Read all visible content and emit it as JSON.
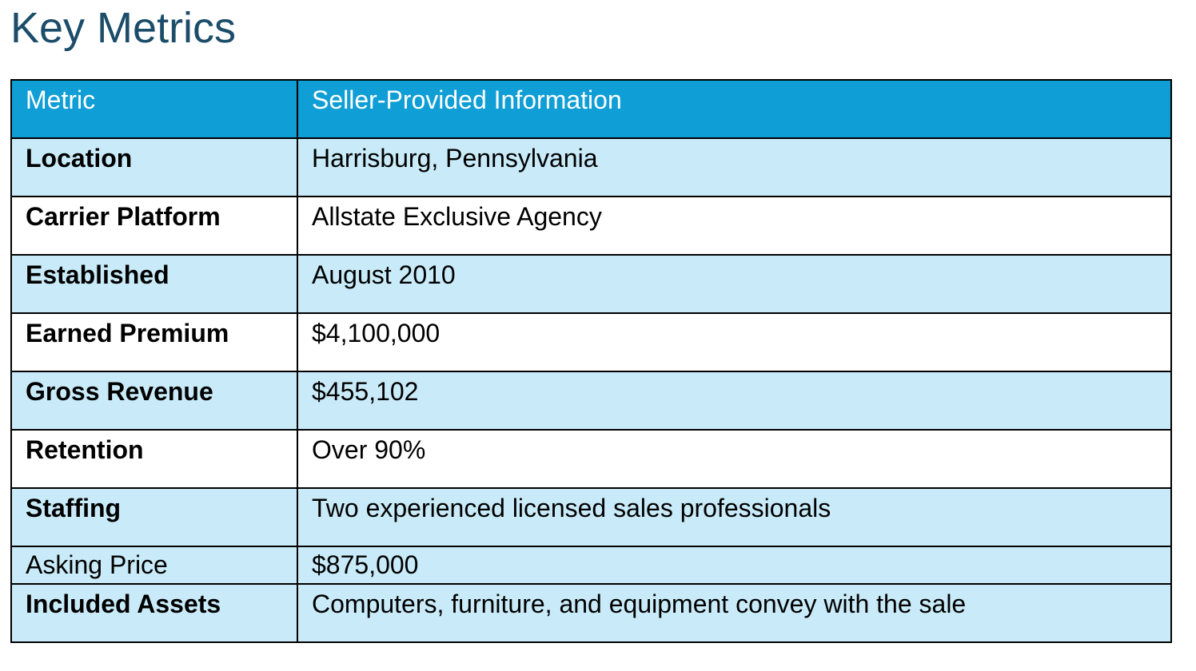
{
  "header": {
    "title": "Key Metrics"
  },
  "table": {
    "columns": [
      "Metric",
      "Seller-Provided Information"
    ],
    "rows": [
      [
        "Location",
        "Harrisburg, Pennsylvania"
      ],
      [
        "Carrier Platform",
        "Allstate Exclusive Agency"
      ],
      [
        "Established",
        "August 2010"
      ],
      [
        "Earned Premium",
        "$4,100,000"
      ],
      [
        "Gross Revenue",
        "$455,102"
      ],
      [
        "Retention",
        "Over 90%"
      ],
      [
        "Staffing",
        "Two experienced licensed sales professionals"
      ],
      [
        "Asking Price",
        "$875,000"
      ],
      [
        "Included Assets",
        "Computers, furniture, and equipment convey with the sale"
      ]
    ]
  }
}
